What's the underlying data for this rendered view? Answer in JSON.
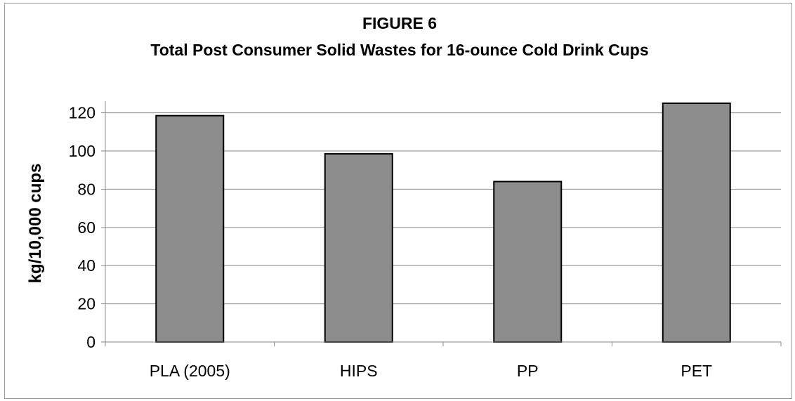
{
  "chart_data": {
    "type": "bar",
    "title": "FIGURE 6",
    "subtitle": "Total Post Consumer Solid Wastes for 16-ounce Cold Drink Cups",
    "xlabel": "",
    "ylabel": "kg/10,000 cups",
    "categories": [
      "PLA (2005)",
      "HIPS",
      "PP",
      "PET"
    ],
    "values": [
      118.5,
      98.5,
      84,
      125
    ],
    "ylim": [
      0,
      120
    ],
    "yticks": [
      0,
      20,
      40,
      60,
      80,
      100,
      120
    ],
    "grid": true,
    "legend": "none",
    "colors": {
      "bar_fill": "#8c8c8c",
      "bar_stroke": "#000000",
      "grid": "#8a8a8a",
      "axis": "#8a8a8a"
    }
  }
}
